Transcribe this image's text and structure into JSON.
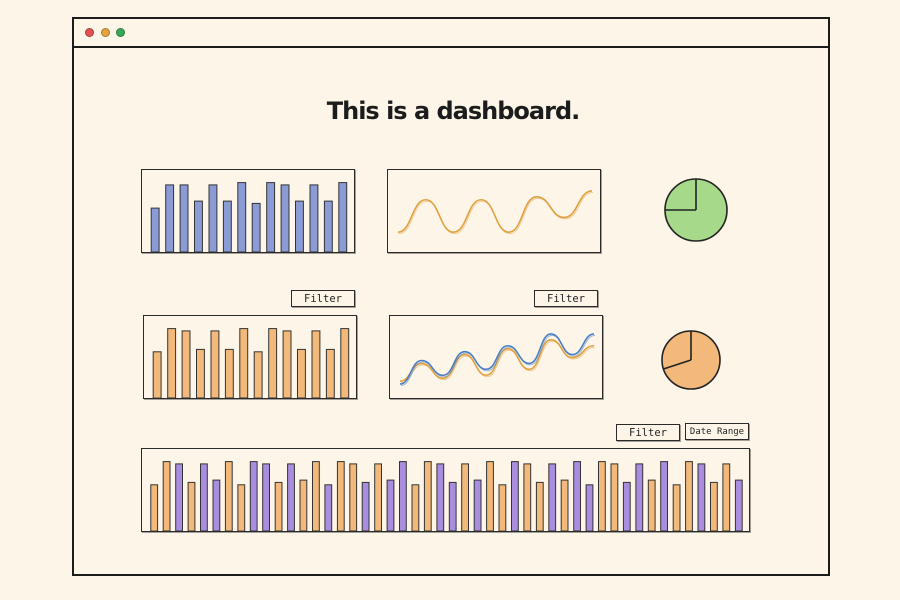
{
  "page": {
    "title": "This is a dashboard."
  },
  "window": {
    "controls": [
      {
        "name": "close",
        "color": "#e05252"
      },
      {
        "name": "minimize",
        "color": "#e6a33c"
      },
      {
        "name": "maximize",
        "color": "#3aa757"
      }
    ]
  },
  "colors": {
    "blue_bar": "#8b9bd6",
    "orange_bar": "#f2b97a",
    "purple_bar": "#a98ee0",
    "line_orange": "#e0a040",
    "line_blue": "#4a7fc4",
    "pie_green": "#a6d98a",
    "pie_orange": "#f2a86a"
  },
  "controls": {
    "filter_1": "Filter",
    "filter_2": "Filter",
    "filter_3": "Filter",
    "date_range": "Date Range"
  },
  "chart_data": [
    {
      "type": "bar",
      "color": "blue",
      "values": [
        38,
        58,
        58,
        44,
        58,
        44,
        60,
        42,
        60,
        58,
        44,
        58,
        44,
        60
      ]
    },
    {
      "type": "line",
      "series": [
        {
          "color": "orange",
          "y": [
            0.2,
            0.75,
            0.2,
            0.75,
            0.2,
            0.8,
            0.45,
            0.9
          ]
        }
      ]
    },
    {
      "type": "pie",
      "color": "green",
      "slices": [
        75,
        25
      ]
    },
    {
      "type": "bar",
      "color": "orange",
      "values": [
        40,
        60,
        58,
        42,
        58,
        42,
        60,
        40,
        60,
        58,
        42,
        58,
        42,
        60
      ]
    },
    {
      "type": "line",
      "series": [
        {
          "color": "orange",
          "y": [
            0.15,
            0.45,
            0.2,
            0.6,
            0.25,
            0.7,
            0.35,
            0.85,
            0.55,
            0.75
          ]
        },
        {
          "color": "blue",
          "y": [
            0.1,
            0.5,
            0.25,
            0.65,
            0.35,
            0.75,
            0.45,
            0.95,
            0.6,
            0.95
          ]
        }
      ]
    },
    {
      "type": "pie",
      "color": "orange",
      "slices": [
        70,
        30
      ]
    },
    {
      "type": "bar",
      "colors": [
        "orange",
        "purple"
      ],
      "values": [
        40,
        60,
        58,
        42,
        58,
        44,
        60,
        40,
        60,
        58,
        42,
        58,
        44,
        60,
        40,
        60,
        58,
        42,
        58,
        44,
        60,
        40,
        60,
        58,
        42,
        58,
        44,
        60,
        40,
        60,
        58,
        42,
        58,
        44,
        60,
        40,
        60,
        58,
        42,
        58,
        44,
        60,
        40,
        60,
        58,
        42,
        58,
        44
      ]
    }
  ]
}
